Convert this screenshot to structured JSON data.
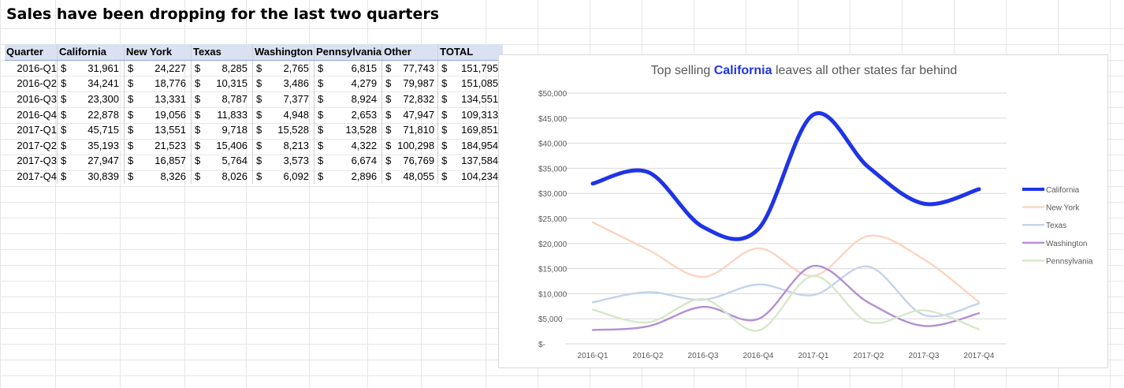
{
  "sheet": {
    "title": "Sales have been dropping for the last two quarters",
    "headers": [
      "Quarter",
      "California",
      "New York",
      "Texas",
      "Washington",
      "Pennsylvania",
      "Other",
      "TOTAL"
    ],
    "currency_symbol": "$",
    "rows": [
      [
        "2016-Q1",
        "31,961",
        "24,227",
        "8,285",
        "2,765",
        "6,815",
        "77,743",
        "151,795"
      ],
      [
        "2016-Q2",
        "34,241",
        "18,776",
        "10,315",
        "3,486",
        "4,279",
        "79,987",
        "151,085"
      ],
      [
        "2016-Q3",
        "23,300",
        "13,331",
        "8,787",
        "7,377",
        "8,924",
        "72,832",
        "134,551"
      ],
      [
        "2016-Q4",
        "22,878",
        "19,056",
        "11,833",
        "4,948",
        "2,653",
        "47,947",
        "109,313"
      ],
      [
        "2017-Q1",
        "45,715",
        "13,551",
        "9,718",
        "15,528",
        "13,528",
        "71,810",
        "169,851"
      ],
      [
        "2017-Q2",
        "35,193",
        "21,523",
        "15,406",
        "8,213",
        "4,322",
        "100,298",
        "184,954"
      ],
      [
        "2017-Q3",
        "27,947",
        "16,857",
        "5,764",
        "3,573",
        "6,674",
        "76,769",
        "137,584"
      ],
      [
        "2017-Q4",
        "30,839",
        "8,326",
        "8,026",
        "6,092",
        "2,896",
        "48,055",
        "104,234"
      ]
    ]
  },
  "chart": {
    "title_prefix": "Top selling ",
    "title_highlight": "California",
    "title_suffix": " leaves all other states far behind"
  },
  "chart_data": {
    "type": "line",
    "categories": [
      "2016-Q1",
      "2016-Q2",
      "2016-Q3",
      "2016-Q4",
      "2017-Q1",
      "2017-Q2",
      "2017-Q3",
      "2017-Q4"
    ],
    "ylim": [
      0,
      50000
    ],
    "y_ticks": [
      "$-",
      "$5,000",
      "$10,000",
      "$15,000",
      "$20,000",
      "$25,000",
      "$30,000",
      "$35,000",
      "$40,000",
      "$45,000",
      "$50,000"
    ],
    "grid": true,
    "legend_position": "right",
    "series": [
      {
        "name": "California",
        "values": [
          31961,
          34241,
          23300,
          22878,
          45715,
          35193,
          27947,
          30839
        ],
        "color": "#1f34e6",
        "emphasis": true
      },
      {
        "name": "New York",
        "values": [
          24227,
          18776,
          13331,
          19056,
          13551,
          21523,
          16857,
          8326
        ],
        "color": "#fbd5c0",
        "emphasis": false
      },
      {
        "name": "Texas",
        "values": [
          8285,
          10315,
          8787,
          11833,
          9718,
          15406,
          5764,
          8026
        ],
        "color": "#c5d3ea",
        "emphasis": false
      },
      {
        "name": "Washington",
        "values": [
          2765,
          3486,
          7377,
          4948,
          15528,
          8213,
          3573,
          6092
        ],
        "color": "#b48fd3",
        "emphasis": false
      },
      {
        "name": "Pennsylvania",
        "values": [
          6815,
          4279,
          8924,
          2653,
          13528,
          4322,
          6674,
          2896
        ],
        "color": "#d6e8c9",
        "emphasis": false
      }
    ]
  }
}
